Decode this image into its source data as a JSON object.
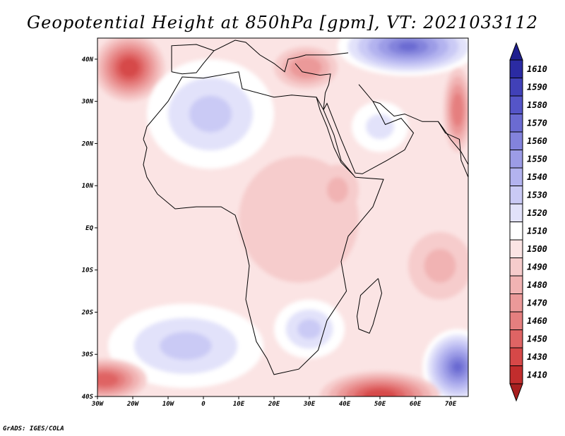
{
  "title": "Geopotential Height at 850hPa [gpm], VT: 2021033112",
  "footer": "GrADS: IGES/COLA",
  "map": {
    "lon_range": [
      -30,
      75
    ],
    "lat_range": [
      -40,
      45
    ],
    "lat_ticks": [
      {
        "value": 40,
        "label": "40N"
      },
      {
        "value": 30,
        "label": "30N"
      },
      {
        "value": 20,
        "label": "20N"
      },
      {
        "value": 10,
        "label": "10N"
      },
      {
        "value": 0,
        "label": "EQ"
      },
      {
        "value": -10,
        "label": "10S"
      },
      {
        "value": -20,
        "label": "20S"
      },
      {
        "value": -30,
        "label": "30S"
      },
      {
        "value": -40,
        "label": "40S"
      }
    ],
    "lon_ticks": [
      {
        "value": -30,
        "label": "30W"
      },
      {
        "value": -20,
        "label": "20W"
      },
      {
        "value": -10,
        "label": "10W"
      },
      {
        "value": 0,
        "label": "0"
      },
      {
        "value": 10,
        "label": "10E"
      },
      {
        "value": 20,
        "label": "20E"
      },
      {
        "value": 30,
        "label": "30E"
      },
      {
        "value": 40,
        "label": "40E"
      },
      {
        "value": 50,
        "label": "50E"
      },
      {
        "value": 60,
        "label": "60E"
      },
      {
        "value": 70,
        "label": "70E"
      }
    ],
    "background_level": 1505,
    "features": [
      {
        "name": "high-north-atlantic",
        "lon": -21,
        "lat": 38,
        "rx": 10,
        "ry": 8,
        "value": 1440
      },
      {
        "name": "low-mediterranean-east",
        "lon": 29,
        "lat": 38,
        "rx": 9,
        "ry": 5,
        "value": 1470
      },
      {
        "name": "low-north-africa",
        "lon": 2,
        "lat": 27,
        "rx": 18,
        "ry": 13,
        "value": 1535
      },
      {
        "name": "low-europe-northeast",
        "lon": 58,
        "lat": 43,
        "rx": 20,
        "ry": 7,
        "value": 1575
      },
      {
        "name": "low-arabia",
        "lon": 50,
        "lat": 24,
        "rx": 8,
        "ry": 6,
        "value": 1520
      },
      {
        "name": "high-central-africa",
        "lon": 27,
        "lat": 2,
        "rx": 17,
        "ry": 15,
        "value": 1490
      },
      {
        "name": "high-ethiopia",
        "lon": 38,
        "lat": 9,
        "rx": 6,
        "ry": 6,
        "value": 1485
      },
      {
        "name": "high-arabian-sea",
        "lon": 72,
        "lat": 28,
        "rx": 4,
        "ry": 10,
        "value": 1460
      },
      {
        "name": "high-indian-ocean",
        "lon": 67,
        "lat": -9,
        "rx": 9,
        "ry": 8,
        "value": 1488
      },
      {
        "name": "low-south-atlantic",
        "lon": -5,
        "lat": -28,
        "rx": 22,
        "ry": 10,
        "value": 1535
      },
      {
        "name": "low-southern-africa",
        "lon": 30,
        "lat": -24,
        "rx": 10,
        "ry": 7,
        "value": 1530
      },
      {
        "name": "low-southeast-ocean",
        "lon": 72,
        "lat": -33,
        "rx": 10,
        "ry": 9,
        "value": 1575
      },
      {
        "name": "high-southwest-corner",
        "lon": -28,
        "lat": -36,
        "rx": 12,
        "ry": 5,
        "value": 1450
      },
      {
        "name": "high-south-of-madagascar",
        "lon": 50,
        "lat": -40,
        "rx": 17,
        "ry": 6,
        "value": 1440
      }
    ]
  },
  "colorbar": {
    "levels": [
      {
        "label": "1610",
        "color": "#2b2ba3"
      },
      {
        "label": "1590",
        "color": "#4141b8"
      },
      {
        "label": "1580",
        "color": "#5555c8"
      },
      {
        "label": "1570",
        "color": "#6b6bd2"
      },
      {
        "label": "1560",
        "color": "#8383dc"
      },
      {
        "label": "1550",
        "color": "#9c9ce6"
      },
      {
        "label": "1540",
        "color": "#b3b3ef"
      },
      {
        "label": "1530",
        "color": "#cacaf5"
      },
      {
        "label": "1520",
        "color": "#e2e2fa"
      },
      {
        "label": "1510",
        "color": "#ffffff"
      },
      {
        "label": "1500",
        "color": "#fbe4e4"
      },
      {
        "label": "1490",
        "color": "#f6cccc"
      },
      {
        "label": "1480",
        "color": "#f1b3b3"
      },
      {
        "label": "1470",
        "color": "#eb9999"
      },
      {
        "label": "1460",
        "color": "#e57f7f"
      },
      {
        "label": "1450",
        "color": "#df6464"
      },
      {
        "label": "1430",
        "color": "#d64848"
      },
      {
        "label": "1410",
        "color": "#c22d2d"
      }
    ],
    "top_arrow_color": "#1f1f8f",
    "bottom_arrow_color": "#a81f1f"
  }
}
